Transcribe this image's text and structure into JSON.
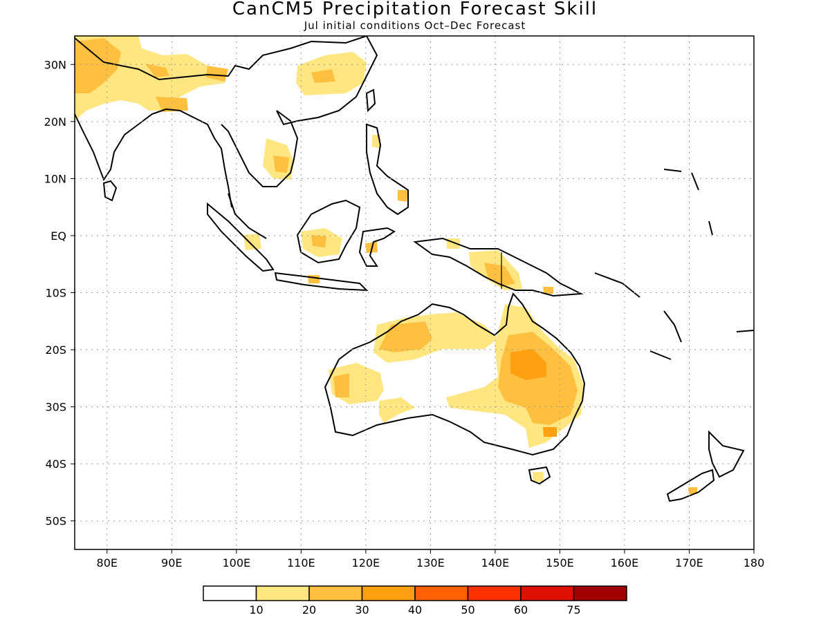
{
  "title": "CanCM5 Precipitation Forecast Skill",
  "subtitle": "Jul initial conditions  Oct–Dec Forecast",
  "map": {
    "lon_range": [
      75,
      180
    ],
    "lat_range": [
      -55,
      35
    ],
    "lon_ticks": [
      "80E",
      "90E",
      "100E",
      "110E",
      "120E",
      "130E",
      "140E",
      "150E",
      "160E",
      "170E",
      "180"
    ],
    "lat_ticks": [
      "30N",
      "20N",
      "10N",
      "EQ",
      "10S",
      "20S",
      "30S",
      "40S",
      "50S"
    ],
    "grid": true
  },
  "colorbar": {
    "labels": [
      "10",
      "20",
      "30",
      "40",
      "50",
      "60",
      "75"
    ],
    "colors": [
      "#ffffff",
      "#ffe680",
      "#ffc040",
      "#ffa010",
      "#ff6000",
      "#ff3000",
      "#e01000",
      "#a00000"
    ]
  }
}
